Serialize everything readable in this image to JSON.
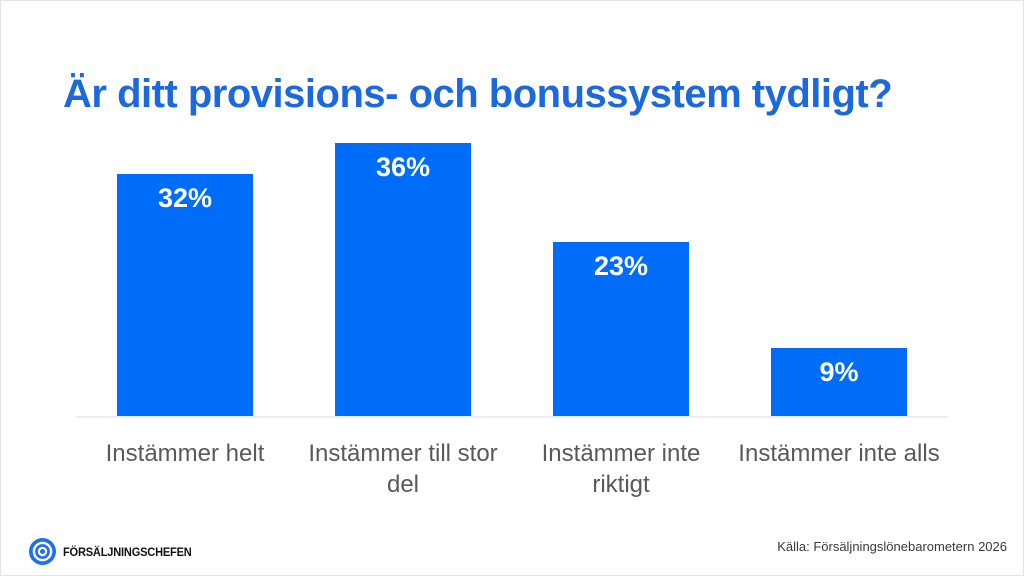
{
  "slide": {
    "title": "Är ditt provisions- och bonussystem tydligt?",
    "footer": {
      "brand": "FÖRSÄLJNINGSCHEFEN",
      "source": "Källa: Försäljningslönebarometern 2026"
    }
  },
  "colors": {
    "title": "#1c69dd",
    "bar": "#006cfa",
    "value_label": "#ffffff",
    "category_label": "#595959",
    "axis_line": "#ececec",
    "logo_blue": "#1f6ff0",
    "background": "#ffffff"
  },
  "chart_data": {
    "type": "bar",
    "title": "Är ditt provisions- och bonussystem tydligt?",
    "categories": [
      "Instämmer helt",
      "Instämmer till stor del",
      "Instämmer inte riktigt",
      "Instämmer inte alls"
    ],
    "values": [
      32,
      36,
      23,
      9
    ],
    "data_labels": [
      "32%",
      "36%",
      "23%",
      "9%"
    ],
    "unit": "%",
    "xlabel": "",
    "ylabel": "",
    "ylim": [
      0,
      37.5
    ],
    "grid": false,
    "legend": false,
    "data_label_position": "inside-end",
    "bar_color": "#006cfa"
  }
}
